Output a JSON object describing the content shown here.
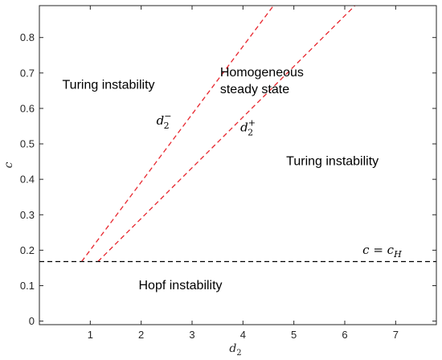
{
  "chart_data": {
    "type": "line",
    "xlabel": "d",
    "xlabel_sub": "2",
    "ylabel": "c",
    "xlim": [
      0,
      7.8
    ],
    "ylim": [
      -0.01,
      0.89
    ],
    "xticks": [
      1,
      2,
      3,
      4,
      5,
      6,
      7
    ],
    "yticks": [
      0,
      0.1,
      0.2,
      0.3,
      0.4,
      0.5,
      0.6,
      0.7,
      0.8
    ],
    "grid": false,
    "series": [
      {
        "name": "d2-minus",
        "color": "#e8262e",
        "style": "dashed",
        "x": [
          0.83,
          4.6
        ],
        "y": [
          0.168,
          0.89
        ]
      },
      {
        "name": "d2-plus",
        "color": "#e8262e",
        "style": "dashed",
        "x": [
          1.15,
          6.2
        ],
        "y": [
          0.168,
          0.89
        ]
      },
      {
        "name": "c-equals-cH",
        "color": "#000000",
        "style": "dashed",
        "x": [
          0,
          7.8
        ],
        "y": [
          0.168,
          0.168
        ]
      }
    ],
    "annotations": [
      {
        "id": "turing-left",
        "lines": [
          "Turing instability"
        ],
        "x": 0.45,
        "y": 0.655
      },
      {
        "id": "homogeneous",
        "lines": [
          "Homogeneous",
          "steady state"
        ],
        "x": 3.55,
        "y": 0.69
      },
      {
        "id": "turing-right",
        "lines": [
          "Turing instability"
        ],
        "x": 4.85,
        "y": 0.44
      },
      {
        "id": "hopf",
        "lines": [
          "Hopf instability"
        ],
        "x": 1.95,
        "y": 0.09
      }
    ],
    "curve_labels": [
      {
        "id": "d2-minus",
        "base": "d",
        "sub": "2",
        "sup": "−",
        "x": 2.3,
        "y": 0.555
      },
      {
        "id": "d2-plus",
        "base": "d",
        "sub": "2",
        "sup": "+",
        "x": 3.95,
        "y": 0.535
      },
      {
        "id": "c-eq-cH",
        "text": "c = c",
        "sub": "H",
        "x": 6.35,
        "y": 0.19
      }
    ]
  }
}
